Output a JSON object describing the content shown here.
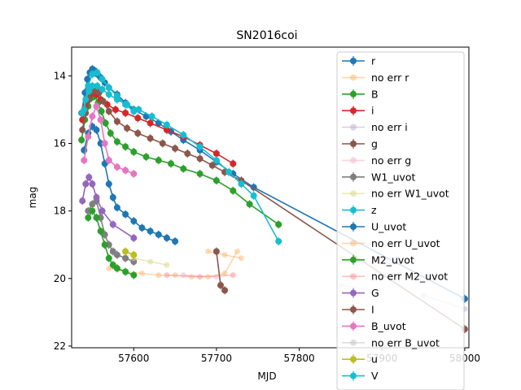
{
  "chart_data": {
    "type": "scatter",
    "title": "SN2016coi",
    "xlabel": "MJD",
    "ylabel": "mag",
    "xlim": [
      57525,
      58005
    ],
    "ylim": [
      22.05,
      13.15
    ],
    "y_inverted": true,
    "grid": false,
    "legend_placement": "upper right",
    "xticks": [
      {
        "value": 57600,
        "label": "57600"
      },
      {
        "value": 57700,
        "label": "57700"
      },
      {
        "value": 57800,
        "label": "57800"
      },
      {
        "value": 57900,
        "label": "57900"
      },
      {
        "value": 58000,
        "label": "58000"
      }
    ],
    "yticks": [
      {
        "value": 14,
        "label": "14"
      },
      {
        "value": 16,
        "label": "16"
      },
      {
        "value": 18,
        "label": "18"
      },
      {
        "value": 20,
        "label": "20"
      },
      {
        "value": 22,
        "label": "22"
      }
    ],
    "series": [
      {
        "name": "r",
        "color": "#1f77b4",
        "style": "errbar",
        "x": [
          57537,
          57541,
          57544,
          57547,
          57550,
          57553,
          57556,
          57560,
          57565,
          57570,
          57580,
          57590,
          57600,
          57615,
          57630,
          57645,
          57660,
          57680,
          57700,
          57720,
          57745,
          58000
        ],
        "y": [
          15.1,
          14.5,
          14.1,
          13.9,
          13.8,
          13.85,
          13.95,
          14.05,
          14.2,
          14.35,
          14.55,
          14.8,
          15.0,
          15.2,
          15.4,
          15.65,
          15.9,
          16.2,
          16.55,
          16.9,
          17.3,
          20.6
        ]
      },
      {
        "name": "no err r",
        "color": "#ffbb78",
        "style": "light",
        "x": [
          57570,
          57590,
          57610,
          57630,
          57650,
          57670,
          57690,
          57710,
          57725
        ],
        "y": [
          19.7,
          19.8,
          19.85,
          19.9,
          19.9,
          19.95,
          19.95,
          19.85,
          19.2
        ]
      },
      {
        "name": "B",
        "color": "#2ca02c",
        "style": "errbar",
        "x": [
          57537,
          57541,
          57545,
          57549,
          57553,
          57557,
          57561,
          57566,
          57572,
          57580,
          57590,
          57600,
          57615,
          57630,
          57645,
          57660,
          57680,
          57700,
          57720,
          57740,
          57775
        ],
        "y": [
          15.9,
          15.3,
          14.9,
          14.65,
          14.6,
          14.8,
          15.05,
          15.4,
          15.7,
          15.95,
          16.1,
          16.25,
          16.4,
          16.5,
          16.6,
          16.75,
          16.9,
          17.1,
          17.4,
          17.8,
          18.4
        ]
      },
      {
        "name": "i",
        "color": "#d62728",
        "style": "errbar",
        "x": [
          57538,
          57542,
          57546,
          57550,
          57555,
          57560,
          57568,
          57578,
          57590,
          57605,
          57620,
          57640,
          57660,
          57680,
          57700,
          57720
        ],
        "y": [
          15.3,
          14.9,
          14.6,
          14.5,
          14.55,
          14.7,
          14.85,
          15.0,
          15.1,
          15.25,
          15.4,
          15.6,
          15.8,
          16.05,
          16.3,
          16.6
        ]
      },
      {
        "name": "no err i",
        "color": "#c5b0d5",
        "style": "light",
        "x": [
          57950,
          58000
        ],
        "y": [
          20.5,
          20.9
        ]
      },
      {
        "name": "g",
        "color": "#8c564b",
        "style": "errbar",
        "x": [
          57538,
          57542,
          57546,
          57550,
          57554,
          57558,
          57563,
          57570,
          57580,
          57592,
          57605,
          57620,
          57635,
          57650,
          57665,
          57680,
          57695,
          57710,
          57730,
          58000
        ],
        "y": [
          15.6,
          15.1,
          14.7,
          14.45,
          14.4,
          14.5,
          14.75,
          15.05,
          15.35,
          15.55,
          15.7,
          15.85,
          16.0,
          16.15,
          16.3,
          16.45,
          16.65,
          16.85,
          17.1,
          21.5
        ]
      },
      {
        "name": "no err g",
        "color": "#f7b6d2",
        "style": "light",
        "x": [
          57660,
          57700
        ],
        "y": [
          19.9,
          19.95
        ]
      },
      {
        "name": "W1_uvot",
        "color": "#7f7f7f",
        "style": "errbar",
        "x": [
          57545,
          57550,
          57555,
          57560,
          57565,
          57570,
          57575,
          57580,
          57590,
          57600
        ],
        "y": [
          18.0,
          17.8,
          17.7,
          18.2,
          18.7,
          19.0,
          19.2,
          19.3,
          19.4,
          19.5
        ]
      },
      {
        "name": "no err W1_uvot",
        "color": "#dbdb8d",
        "style": "light",
        "x": [
          57600,
          57620,
          57640
        ],
        "y": [
          19.4,
          19.5,
          19.6
        ]
      },
      {
        "name": "z",
        "color": "#17becf",
        "style": "errbar",
        "x": [
          57538,
          57542,
          57546,
          57550,
          57556,
          57562,
          57570,
          57580,
          57592,
          57606,
          57622,
          57640,
          57660,
          57680,
          57700,
          57715,
          57730,
          57745,
          57775
        ],
        "y": [
          15.1,
          14.7,
          14.45,
          14.3,
          14.3,
          14.4,
          14.55,
          14.7,
          14.85,
          15.0,
          15.2,
          15.45,
          15.75,
          16.1,
          16.5,
          16.85,
          17.2,
          17.55,
          18.9
        ]
      },
      {
        "name": "U_uvot",
        "color": "#1f77b4",
        "style": "errbar",
        "x": [
          57540,
          57545,
          57550,
          57555,
          57560,
          57565,
          57570,
          57575,
          57580,
          57590,
          57600,
          57610,
          57620,
          57630,
          57640,
          57650
        ],
        "y": [
          16.2,
          15.7,
          15.5,
          15.6,
          16.0,
          16.6,
          17.2,
          17.6,
          17.9,
          18.1,
          18.3,
          18.5,
          18.6,
          18.7,
          18.8,
          18.9
        ]
      },
      {
        "name": "no err U_uvot",
        "color": "#ffbb78",
        "style": "light",
        "x": [
          57690,
          57710,
          57730
        ],
        "y": [
          19.2,
          19.3,
          19.4
        ]
      },
      {
        "name": "M2_uvot",
        "color": "#2ca02c",
        "style": "errbar",
        "x": [
          57545,
          57550,
          57555,
          57560,
          57565,
          57570,
          57575,
          57580,
          57590,
          57600
        ],
        "y": [
          18.2,
          18.0,
          18.2,
          18.6,
          19.0,
          19.4,
          19.6,
          19.7,
          19.8,
          19.9
        ]
      },
      {
        "name": "no err M2_uvot",
        "color": "#ff9896",
        "style": "light",
        "x": [
          57640,
          57680,
          57720
        ],
        "y": [
          19.9,
          19.95,
          19.9
        ]
      },
      {
        "name": "G",
        "color": "#9467bd",
        "style": "errbar",
        "x": [
          57538,
          57542,
          57546,
          57550,
          57555,
          57562,
          57575,
          57600
        ],
        "y": [
          17.7,
          17.2,
          17.0,
          17.2,
          17.6,
          18.0,
          18.4,
          18.8
        ]
      },
      {
        "name": "I",
        "color": "#8c564b",
        "style": "errbar",
        "x": [
          57700,
          57705,
          57710
        ],
        "y": [
          19.2,
          20.2,
          20.35
        ]
      },
      {
        "name": "B_uvot",
        "color": "#e377c2",
        "style": "errbar",
        "x": [
          57540,
          57545,
          57550,
          57555,
          57560,
          57565,
          57570,
          57580,
          57590,
          57600
        ],
        "y": [
          16.5,
          15.8,
          15.2,
          14.9,
          15.3,
          16.0,
          16.5,
          16.7,
          16.8,
          16.9
        ]
      },
      {
        "name": "no err B_uvot",
        "color": "#c7c7c7",
        "style": "light",
        "x": [
          57850,
          57900
        ],
        "y": [
          20.2,
          20.4
        ]
      },
      {
        "name": "u",
        "color": "#bcbd22",
        "style": "errbar",
        "x": [
          57590,
          57600
        ],
        "y": [
          19.2,
          19.3
        ]
      },
      {
        "name": "V",
        "color": "#17becf",
        "style": "errbar",
        "x": [
          57540,
          57545,
          57550,
          57556,
          57562,
          57570,
          57580,
          57590,
          57600
        ],
        "y": [
          15.0,
          14.3,
          13.95,
          13.9,
          14.1,
          14.35,
          14.6,
          14.85,
          15.05
        ]
      }
    ]
  }
}
